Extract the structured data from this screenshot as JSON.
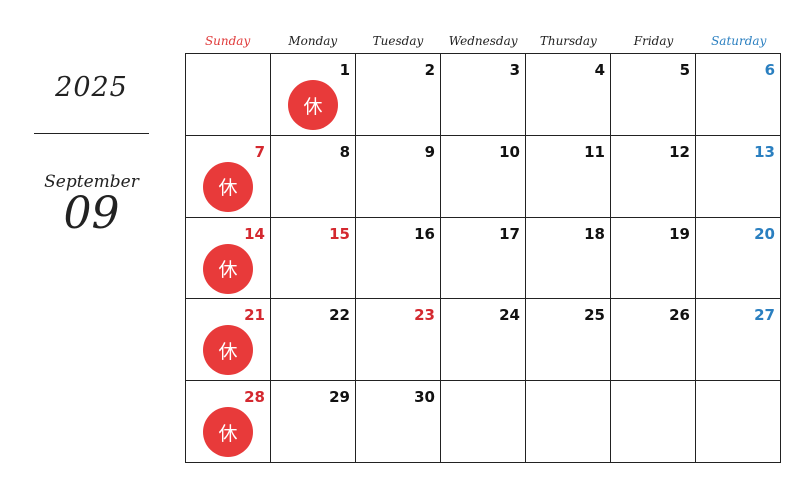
{
  "header": {
    "year": "2025",
    "month_name": "September",
    "month_number": "09"
  },
  "weekdays": [
    "Sunday",
    "Monday",
    "Tuesday",
    "Wednesday",
    "Thursday",
    "Friday",
    "Saturday"
  ],
  "holiday_label": "休",
  "colors": {
    "sunday": "#e03a3a",
    "holiday_number": "#d4282f",
    "saturday": "#2a7fc0",
    "holiday_marker": "#e83a3a",
    "text": "#111111"
  },
  "weeks": [
    [
      {
        "day": ""
      },
      {
        "day": "1",
        "holiday": true
      },
      {
        "day": "2"
      },
      {
        "day": "3"
      },
      {
        "day": "4"
      },
      {
        "day": "5"
      },
      {
        "day": "6",
        "color": "blue"
      }
    ],
    [
      {
        "day": "7",
        "color": "red",
        "holiday": true
      },
      {
        "day": "8"
      },
      {
        "day": "9"
      },
      {
        "day": "10"
      },
      {
        "day": "11"
      },
      {
        "day": "12"
      },
      {
        "day": "13",
        "color": "blue"
      }
    ],
    [
      {
        "day": "14",
        "color": "red",
        "holiday": true
      },
      {
        "day": "15",
        "color": "red"
      },
      {
        "day": "16"
      },
      {
        "day": "17"
      },
      {
        "day": "18"
      },
      {
        "day": "19"
      },
      {
        "day": "20",
        "color": "blue"
      }
    ],
    [
      {
        "day": "21",
        "color": "red",
        "holiday": true
      },
      {
        "day": "22"
      },
      {
        "day": "23",
        "color": "red"
      },
      {
        "day": "24"
      },
      {
        "day": "25"
      },
      {
        "day": "26"
      },
      {
        "day": "27",
        "color": "blue"
      }
    ],
    [
      {
        "day": "28",
        "color": "red",
        "holiday": true
      },
      {
        "day": "29"
      },
      {
        "day": "30"
      },
      {
        "day": ""
      },
      {
        "day": ""
      },
      {
        "day": ""
      },
      {
        "day": ""
      }
    ]
  ]
}
